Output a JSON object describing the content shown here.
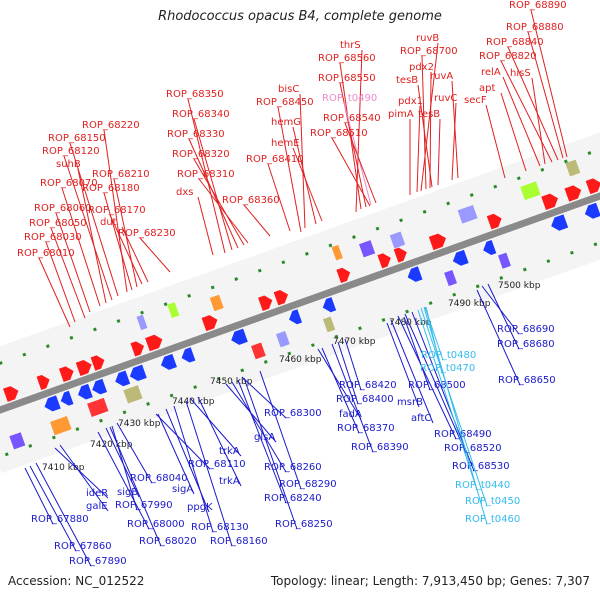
{
  "title": "Rhodococcus opacus B4, complete genome",
  "footer": {
    "accession": "Accession: NC_012522",
    "summary": "Topology: linear; Length: 7,913,450 bp; Genes: 7,307"
  },
  "colors": {
    "top_label": "#e02020",
    "top_rna": "#ee88cc",
    "bottom_label": "#1a1acc",
    "bottom_rna": "#33bbee",
    "backbone": "#8a8a8a",
    "tick": "#2a8a2a",
    "scale_text": "#222222"
  },
  "scale_labels": [
    "7410 kbp",
    "7420 kbp",
    "7430 kbp",
    "7440 kbp",
    "7450 kbp",
    "7460 kbp",
    "7470 kbp",
    "7480 kbp",
    "7490 kbp",
    "7500 kbp"
  ],
  "top_labels": [
    "ROP_68010",
    "ROP_68030",
    "ROP_68050",
    "ROP_68060",
    "ROP_68070",
    "suhB",
    "ROP_68120",
    "ROP_68150",
    "ROP_68220",
    "ROP_68180",
    "ROP_68210",
    "ROP_68170",
    "dut",
    "ROP_68230",
    "ROP_68350",
    "ROP_68340",
    "ROP_68330",
    "ROP_68320",
    "ROP_68310",
    "dxs",
    "ROP_68360",
    "bisC",
    "ROP_68450",
    "hemG",
    "hemE",
    "ROP_68410",
    "thrS",
    "ROP_68560",
    "ROP_68550",
    "ROP_t0490",
    "ROP_68540",
    "ROP_68510",
    "ruvB",
    "ROP_68700",
    "pdx2",
    "tesB",
    "ruvA",
    "pdx1",
    "ruvC",
    "pimA",
    "tesB",
    "ROP_68890",
    "ROP_68880",
    "ROP_68840",
    "ROP_68820",
    "relA",
    "hisS",
    "apt",
    "secF"
  ],
  "bottom_labels": [
    "ROP_67880",
    "ROP_67860",
    "ROP_67890",
    "ideR",
    "galE",
    "sigB",
    "ROP_67990",
    "ROP_68040",
    "ROP_68000",
    "ROP_68020",
    "ROP_68110",
    "sigA",
    "ppgK",
    "ROP_68130",
    "ROP_68160",
    "trkA",
    "trkA",
    "glsA",
    "ROP_68260",
    "ROP_68240",
    "ROP_68250",
    "ROP_68300",
    "ROP_68290",
    "fadA",
    "ROP_68370",
    "ROP_68390",
    "ROP_68400",
    "ROP_68420",
    "ROP_68500",
    "msrB",
    "aftC",
    "ROP_68490",
    "ROP_68520",
    "ROP_68530",
    "ROP_t0480",
    "ROP_t0470",
    "ROP_t0440",
    "ROP_t0450",
    "ROP_t0460",
    "ROP_68690",
    "ROP_68680",
    "ROP_68650"
  ]
}
